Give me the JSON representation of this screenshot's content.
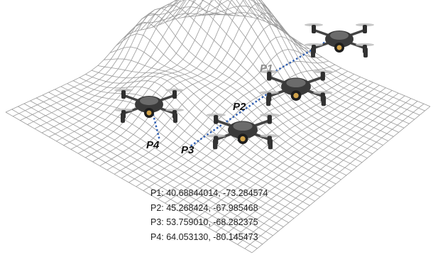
{
  "points": [
    {
      "id": "P1",
      "lat": "40.68844014",
      "lon": "-73.284574"
    },
    {
      "id": "P2",
      "lat": "45.268424",
      "lon": "-67.985468"
    },
    {
      "id": "P3",
      "lat": "53.759010",
      "lon": "-68.282375"
    },
    {
      "id": "P4",
      "lat": "64.053130",
      "lon": "-80.145473"
    }
  ],
  "labels": {
    "p1": "P1",
    "p2": "P2",
    "p3": "P3",
    "p4": "P4"
  },
  "coordinates": [
    "P1: 40.68844014, -73.284574",
    "P2: 45.268424, -67.985468",
    "P3: 53.759010, -68.282375",
    "P4: 64.053130, -80.145473"
  ],
  "colors": {
    "mesh": "#9a9a9a",
    "path": "#2f5fb3",
    "drone_body": "#3a3a3a",
    "label_p1": "#8c8c8c"
  },
  "icons": [
    "drone-icon",
    "terrain-mesh"
  ]
}
